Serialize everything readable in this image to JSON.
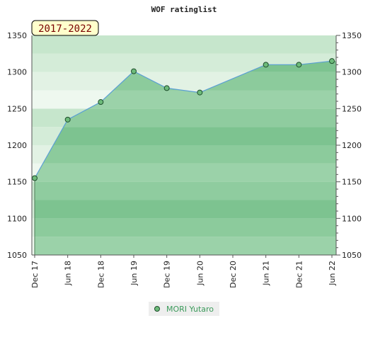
{
  "chart_data": {
    "type": "area",
    "title": "WOF ratinglist",
    "period_badge": "2017-2022",
    "xlabel": "",
    "ylabel": "",
    "x_tick_labels": [
      "Dec 17",
      "Jun 18",
      "Dec 18",
      "Jun 19",
      "Dec 19",
      "Jun 20",
      "Dec 20",
      "Jun 21",
      "Dec 21",
      "Jun 22"
    ],
    "y_ticks": [
      1050,
      1100,
      1150,
      1200,
      1250,
      1300,
      1350
    ],
    "ylim": [
      1050,
      1350
    ],
    "grid": false,
    "legend_position": "bottom-center",
    "series": [
      {
        "name": "MORI Yutaro",
        "x": [
          "Dec 17",
          "Jun 18",
          "Dec 18",
          "Jun 19",
          "Dec 19",
          "Jun 20",
          "Jun 21",
          "Dec 21",
          "Jun 22"
        ],
        "values": [
          1155,
          1235,
          1259,
          1301,
          1278,
          1272,
          1310,
          1310,
          1315
        ]
      }
    ],
    "colors": {
      "line": "#5a9fd4",
      "marker": "#6dbb7a",
      "marker_stroke": "#1e4d2b",
      "badge_fill": "#ffffcc",
      "badge_text": "#7a0000",
      "area_light": "#d9eedc",
      "area_dark": "#7cc493"
    }
  }
}
